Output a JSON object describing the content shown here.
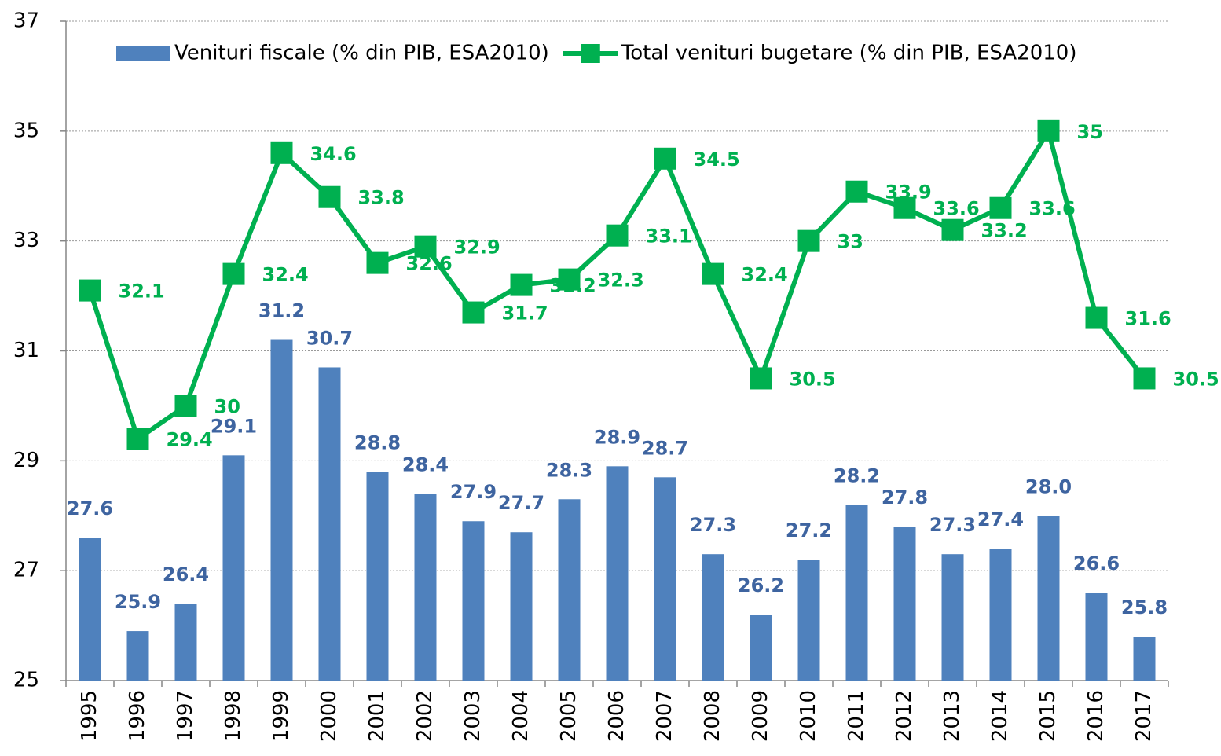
{
  "chart_data": {
    "type": "bar-line",
    "categories": [
      "1995",
      "1996",
      "1997",
      "1998",
      "1999",
      "2000",
      "2001",
      "2002",
      "2003",
      "2004",
      "2005",
      "2006",
      "2007",
      "2008",
      "2009",
      "2010",
      "2011",
      "2012",
      "2013",
      "2014",
      "2015",
      "2016",
      "2017"
    ],
    "series": [
      {
        "name": "Venituri fiscale (% din PIB, ESA2010)",
        "type": "bar",
        "color": "#4f81bd",
        "label_color": "#3e64a0",
        "values": [
          27.6,
          25.9,
          26.4,
          29.1,
          31.2,
          30.7,
          28.8,
          28.4,
          27.9,
          27.7,
          28.3,
          28.9,
          28.7,
          27.3,
          26.2,
          27.2,
          28.2,
          27.8,
          27.3,
          27.4,
          28.0,
          26.6,
          25.8
        ],
        "value_labels": [
          "27.6",
          "25.9",
          "26.4",
          "29.1",
          "31.2",
          "30.7",
          "28.8",
          "28.4",
          "27.9",
          "27.7",
          "28.3",
          "28.9",
          "28.7",
          "27.3",
          "26.2",
          "27.2",
          "28.2",
          "27.8",
          "27.3",
          "27.4",
          "28.0",
          "26.6",
          "25.8"
        ]
      },
      {
        "name": "Total venituri bugetare (% din PIB, ESA2010)",
        "type": "line",
        "color": "#00b050",
        "values": [
          32.1,
          29.4,
          30,
          32.4,
          34.6,
          33.8,
          32.6,
          32.9,
          31.7,
          32.2,
          32.3,
          33.1,
          34.5,
          32.4,
          30.5,
          33,
          33.9,
          33.6,
          33.2,
          33.6,
          35,
          31.6,
          30.5
        ]
      }
    ],
    "ylim": [
      25,
      37
    ],
    "yticks": [
      25,
      27,
      29,
      31,
      33,
      35,
      37
    ],
    "grid": true,
    "legend": "top"
  }
}
